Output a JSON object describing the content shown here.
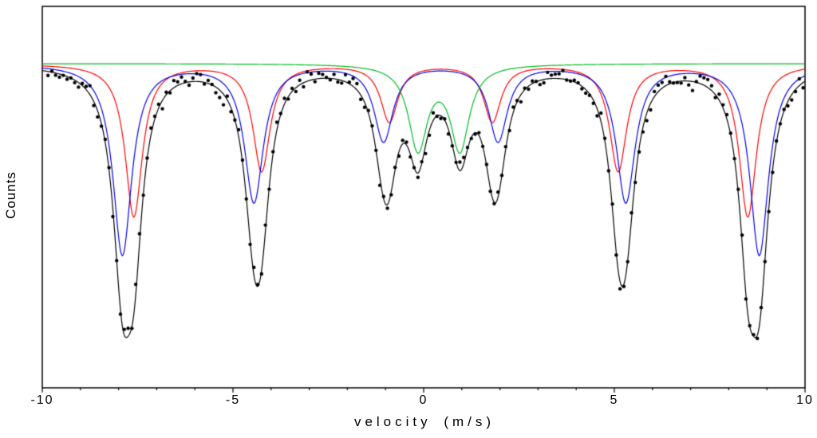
{
  "figure": {
    "background": "#ffffff",
    "frame_color": "#000000"
  },
  "chart_data": {
    "type": "line",
    "title": "",
    "xlabel": "velocity (m/s)",
    "ylabel": "Counts",
    "xlim": [
      -10,
      10
    ],
    "ylim": [
      0,
      1
    ],
    "x_ticks": [
      -10,
      -5,
      0,
      5,
      10
    ],
    "x_tick_labels": [
      "-10",
      "-5",
      "0",
      "5",
      "10"
    ],
    "x_minor_step": 1,
    "y_tick_labels": [],
    "grid": false,
    "legend": "none",
    "baseline": 0.85,
    "model": "sum_of_lorentzian_absorption_dips",
    "series": [
      {
        "name": "sextet-fit-red",
        "color": "#ff0000",
        "line_width": 1.2,
        "centers": [
          -7.6,
          -4.25,
          -0.9,
          1.8,
          5.1,
          8.5
        ],
        "depths": [
          0.4,
          0.28,
          0.15,
          0.15,
          0.28,
          0.4
        ],
        "fwhm": 0.55
      },
      {
        "name": "sextet-fit-blue",
        "color": "#0000ee",
        "line_width": 1.2,
        "centers": [
          -7.9,
          -4.45,
          -1.05,
          1.95,
          5.3,
          8.8
        ],
        "depths": [
          0.5,
          0.36,
          0.2,
          0.2,
          0.36,
          0.5
        ],
        "fwhm": 0.6
      },
      {
        "name": "doublet-fit-green",
        "color": "#00bb22",
        "line_width": 1.2,
        "centers": [
          -0.15,
          0.95
        ],
        "depths": [
          0.22,
          0.22
        ],
        "fwhm": 0.6
      },
      {
        "name": "total-fit-black",
        "color": "#000000",
        "line_width": 1.2,
        "composite": "sum-of-all-subspectra"
      }
    ],
    "scatter": {
      "name": "measured-data-points",
      "color": "#000000",
      "marker": "filled-circle",
      "marker_radius": 2.2,
      "x_start": -9.85,
      "x_step": 0.1,
      "n_points": 199,
      "noise_amplitude": 0.035,
      "seed": 7,
      "follows": "total-fit-black"
    }
  }
}
